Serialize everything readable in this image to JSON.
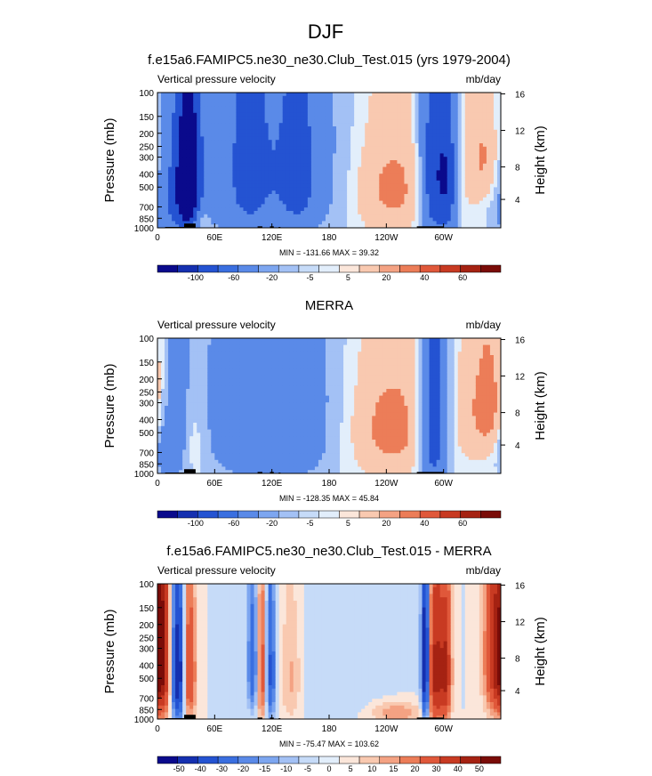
{
  "page": {
    "title": "DJF"
  },
  "chart_data": [
    {
      "type": "heatmap",
      "title": "f.e15a6.FAMIPC5.ne30_ne30.Club_Test.015 (yrs 1979-2004)",
      "left_label": "Vertical pressure velocity",
      "right_label": "mb/day",
      "ylabel": "Pressure (mb)",
      "ylabel_right": "Height (km)",
      "x_ticks": [
        "0",
        "60E",
        "120E",
        "180",
        "120W",
        "60W"
      ],
      "y_ticks": [
        "100",
        "150",
        "200",
        "250",
        "300",
        "400",
        "500",
        "700",
        "850",
        "1000"
      ],
      "yr_ticks": [
        "16",
        "12",
        "8",
        "4"
      ],
      "stats": "MIN = -131.66  MAX =  39.32",
      "levels": [
        "-100",
        "-60",
        "-20",
        "-5",
        "5",
        "20",
        "40",
        "60"
      ],
      "colors": [
        "#0a0a8c",
        "#1530b0",
        "#2453d2",
        "#3a6fe0",
        "#5a8ae8",
        "#7da6f0",
        "#a3c1f5",
        "#c6dbf8",
        "#e2eefb",
        "#fbe6da",
        "#f9c9b0",
        "#f4a283",
        "#ec7d58",
        "#e0583a",
        "#c83a22",
        "#a52212",
        "#7a0c08"
      ],
      "features": [
        {
          "lon": 20,
          "w": 18,
          "p": 480,
          "h": 420,
          "v": -75
        },
        {
          "lon": 33,
          "w": 8,
          "p": 450,
          "h": 400,
          "v": -100
        },
        {
          "lon": 120,
          "w": 55,
          "p": 420,
          "h": 500,
          "v": -55
        },
        {
          "lon": 95,
          "w": 12,
          "p": 350,
          "h": 380,
          "v": -40
        },
        {
          "lon": 148,
          "w": 12,
          "p": 380,
          "h": 380,
          "v": -40
        },
        {
          "lon": 240,
          "w": 35,
          "p": 500,
          "h": 380,
          "v": 28
        },
        {
          "lon": 290,
          "w": 10,
          "p": 420,
          "h": 500,
          "v": -95
        },
        {
          "lon": 305,
          "w": 7,
          "p": 450,
          "h": 450,
          "v": -70
        },
        {
          "lon": 352,
          "w": 20,
          "p": 300,
          "h": 260,
          "v": 35
        },
        {
          "lon": 45,
          "w": 6,
          "p": 900,
          "h": 150,
          "v": 30
        },
        {
          "lon": 0,
          "w": 360,
          "p": 110,
          "h": 140,
          "v": -2
        }
      ]
    },
    {
      "type": "heatmap",
      "title": "MERRA",
      "left_label": "Vertical pressure velocity",
      "right_label": "mb/day",
      "ylabel": "Pressure (mb)",
      "ylabel_right": "Height (km)",
      "x_ticks": [
        "0",
        "60E",
        "120E",
        "180",
        "120W",
        "60W"
      ],
      "y_ticks": [
        "100",
        "150",
        "200",
        "250",
        "300",
        "400",
        "500",
        "700",
        "850",
        "1000"
      ],
      "yr_ticks": [
        "16",
        "12",
        "8",
        "4"
      ],
      "stats": "MIN = -128.35  MAX =  45.84",
      "levels": [
        "-100",
        "-60",
        "-20",
        "-5",
        "5",
        "20",
        "40",
        "60"
      ],
      "colors": [
        "#0a0a8c",
        "#1530b0",
        "#2453d2",
        "#3a6fe0",
        "#5a8ae8",
        "#7da6f0",
        "#a3c1f5",
        "#c6dbf8",
        "#e2eefb",
        "#fbe6da",
        "#f9c9b0",
        "#f4a283",
        "#ec7d58",
        "#e0583a",
        "#c83a22",
        "#a52212",
        "#7a0c08"
      ],
      "features": [
        {
          "lon": 20,
          "w": 12,
          "p": 420,
          "h": 420,
          "v": -45
        },
        {
          "lon": 35,
          "w": 10,
          "p": 550,
          "h": 300,
          "v": 25
        },
        {
          "lon": 120,
          "w": 50,
          "p": 420,
          "h": 480,
          "v": -55
        },
        {
          "lon": 240,
          "w": 40,
          "p": 450,
          "h": 380,
          "v": 28
        },
        {
          "lon": 290,
          "w": 10,
          "p": 450,
          "h": 500,
          "v": -95
        },
        {
          "lon": 350,
          "w": 20,
          "p": 300,
          "h": 280,
          "v": 30
        },
        {
          "lon": 8,
          "w": 8,
          "p": 700,
          "h": 200,
          "v": -30
        },
        {
          "lon": 0,
          "w": 360,
          "p": 110,
          "h": 140,
          "v": -2
        }
      ]
    },
    {
      "type": "heatmap",
      "title": "f.e15a6.FAMIPC5.ne30_ne30.Club_Test.015 - MERRA",
      "left_label": "Vertical pressure velocity",
      "right_label": "mb/day",
      "ylabel": "Pressure (mb)",
      "ylabel_right": "Height (km)",
      "x_ticks": [
        "0",
        "60E",
        "120E",
        "180",
        "120W",
        "60W"
      ],
      "y_ticks": [
        "100",
        "150",
        "200",
        "250",
        "300",
        "400",
        "500",
        "700",
        "850",
        "1000"
      ],
      "yr_ticks": [
        "16",
        "12",
        "8",
        "4"
      ],
      "stats": "MIN = -75.47  MAX = 103.62",
      "levels": [
        "-50",
        "-40",
        "-30",
        "-20",
        "-15",
        "-10",
        "-5",
        "0",
        "5",
        "10",
        "15",
        "20",
        "30",
        "40",
        "50"
      ],
      "colors": [
        "#0a0a8c",
        "#1530b0",
        "#2453d2",
        "#3a6fe0",
        "#5a8ae8",
        "#7da6f0",
        "#a3c1f5",
        "#c6dbf8",
        "#e2eefb",
        "#fbe6da",
        "#f9c9b0",
        "#f4a283",
        "#ec7d58",
        "#e0583a",
        "#c83a22",
        "#a52212",
        "#7a0c08"
      ],
      "features": [
        {
          "lon": 5,
          "w": 6,
          "p": 350,
          "h": 400,
          "v": 45
        },
        {
          "lon": 22,
          "w": 5,
          "p": 450,
          "h": 380,
          "v": -55
        },
        {
          "lon": 33,
          "w": 5,
          "p": 450,
          "h": 350,
          "v": 35
        },
        {
          "lon": 100,
          "w": 4,
          "p": 400,
          "h": 300,
          "v": -30
        },
        {
          "lon": 110,
          "w": 4,
          "p": 450,
          "h": 380,
          "v": 30
        },
        {
          "lon": 118,
          "w": 4,
          "p": 450,
          "h": 380,
          "v": -35
        },
        {
          "lon": 140,
          "w": 8,
          "p": 500,
          "h": 350,
          "v": 12
        },
        {
          "lon": 200,
          "w": 40,
          "p": 500,
          "h": 400,
          "v": -4
        },
        {
          "lon": 281,
          "w": 3,
          "p": 400,
          "h": 420,
          "v": -60
        },
        {
          "lon": 292,
          "w": 6,
          "p": 450,
          "h": 400,
          "v": 45
        },
        {
          "lon": 303,
          "w": 4,
          "p": 450,
          "h": 350,
          "v": 35
        },
        {
          "lon": 354,
          "w": 8,
          "p": 350,
          "h": 350,
          "v": 40
        },
        {
          "lon": 250,
          "w": 20,
          "p": 900,
          "h": 120,
          "v": 15
        }
      ]
    }
  ]
}
